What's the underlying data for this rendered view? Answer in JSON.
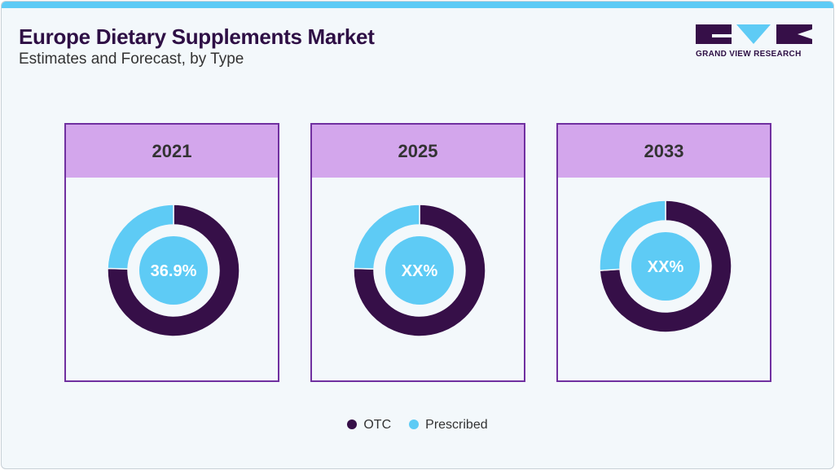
{
  "header": {
    "title": "Europe Dietary Supplements Market",
    "subtitle": "Estimates and Forecast, by Type",
    "logo_text": "GRAND VIEW RESEARCH"
  },
  "colors": {
    "OTC": "#360f48",
    "Prescribed": "#5ecbf5",
    "accent": "#7030a0",
    "card_header": "#d3a6ec"
  },
  "chart_data": [
    {
      "type": "pie",
      "variant": "donut",
      "title": "2021",
      "categories": [
        "OTC",
        "Prescribed"
      ],
      "values": [
        75.5,
        24.5
      ],
      "center_label": "36.9%"
    },
    {
      "type": "pie",
      "variant": "donut",
      "title": "2025",
      "categories": [
        "OTC",
        "Prescribed"
      ],
      "values": [
        75.5,
        24.5
      ],
      "center_label": "XX%"
    },
    {
      "type": "pie",
      "variant": "donut",
      "title": "2033",
      "categories": [
        "OTC",
        "Prescribed"
      ],
      "values": [
        74,
        26
      ],
      "center_label": "XX%"
    }
  ],
  "legend": [
    {
      "name": "OTC",
      "color": "#360f48"
    },
    {
      "name": "Prescribed",
      "color": "#5ecbf5"
    }
  ]
}
